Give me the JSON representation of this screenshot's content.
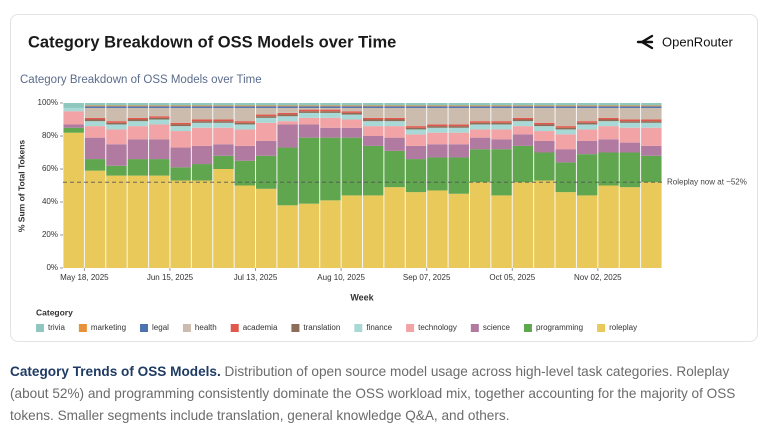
{
  "card_title": "Category Breakdown of OSS Models over Time",
  "brand": "OpenRouter",
  "caption": {
    "title": "Category Trends of OSS Models.",
    "text": "Distribution of open source model usage across high-level task categories. Roleplay (about 52%) and programming consistently dominate the OSS workload mix, together accounting for the majority of OSS tokens. Smaller segments include translation, general knowledge Q&A, and others."
  },
  "chart_data": {
    "type": "stacked_bar",
    "title": "Category Breakdown of OSS Models over Time",
    "x_label": "Week",
    "y_label": "% Sum of Total Tokens",
    "legend_title": "Category",
    "legend": "bottom",
    "categories": [
      "May 18, 2025",
      null,
      null,
      null,
      "Jun 15, 2025",
      null,
      null,
      null,
      "Jul 13, 2025",
      null,
      null,
      null,
      "Aug 10, 2025",
      null,
      null,
      null,
      "Sep 07, 2025",
      null,
      null,
      null,
      "Oct 05, 2025",
      null,
      null,
      null,
      "Nov 02, 2025",
      null,
      null,
      null
    ],
    "ylim": [
      0,
      100
    ],
    "yticks": [
      {
        "value": 0,
        "label": "0%"
      },
      {
        "value": 20,
        "label": "20%"
      },
      {
        "value": 40,
        "label": "40%"
      },
      {
        "value": 60,
        "label": "60%"
      },
      {
        "value": 80,
        "label": "80%"
      },
      {
        "value": 100,
        "label": "100%"
      }
    ],
    "annotation": {
      "text": "Roleplay now at ~52%",
      "value": 52
    },
    "series": [
      {
        "name": "trivia",
        "color": "#8ec7bd",
        "values": [
          3,
          1.5,
          1.5,
          1.5,
          1.5,
          1.5,
          1.5,
          1.5,
          1.5,
          1.5,
          1.5,
          1.5,
          1.5,
          1.5,
          1.5,
          1.5,
          1.5,
          1.5,
          1.5,
          1.5,
          1.5,
          1.5,
          1.5,
          1.5,
          1.5,
          1.5,
          1.5,
          1.5
        ]
      },
      {
        "name": "marketing",
        "color": "#e8913a",
        "values": [
          0,
          0.5,
          0.5,
          0.5,
          0.5,
          0.5,
          0.5,
          0.5,
          0.5,
          0.5,
          0.5,
          0.5,
          0.5,
          0.5,
          0.5,
          0.5,
          0.5,
          0.5,
          0.5,
          0.5,
          0.5,
          0.5,
          0.5,
          0.5,
          0.5,
          0.5,
          0.5,
          0.5
        ]
      },
      {
        "name": "legal",
        "color": "#4c72b0",
        "values": [
          0,
          1,
          1,
          1,
          1,
          1,
          1,
          1,
          1,
          1,
          1,
          1,
          1,
          1,
          1,
          1,
          1,
          1,
          1,
          1,
          1,
          1,
          1,
          1,
          1,
          1,
          1,
          1
        ]
      },
      {
        "name": "health",
        "color": "#cbbcae",
        "values": [
          0,
          6,
          8,
          6,
          5,
          9,
          7,
          7,
          8,
          4,
          3,
          1,
          1,
          2,
          6,
          6,
          11,
          10,
          10,
          8,
          8,
          6,
          9,
          11,
          8,
          6,
          7,
          7
        ]
      },
      {
        "name": "academia",
        "color": "#e05a4b",
        "values": [
          0,
          1,
          1,
          1,
          1,
          1,
          1,
          1,
          1,
          1,
          1,
          1,
          1,
          1,
          1,
          1,
          1,
          1,
          1,
          1,
          1,
          1,
          1,
          1,
          1,
          1,
          1,
          1
        ]
      },
      {
        "name": "translation",
        "color": "#8c6d5a",
        "values": [
          0,
          1,
          1,
          1,
          1,
          1,
          1,
          1,
          1,
          1,
          1,
          1,
          1,
          1,
          1,
          1,
          1,
          1,
          1,
          1,
          1,
          1,
          1,
          1,
          1,
          1,
          1,
          1
        ]
      },
      {
        "name": "finance",
        "color": "#a9d9d6",
        "values": [
          2,
          3,
          3,
          3,
          3,
          3,
          3,
          3,
          3,
          3,
          3,
          3,
          3,
          3,
          3,
          3,
          3,
          3,
          3,
          3,
          3,
          3,
          3,
          3,
          3,
          3,
          3,
          3
        ]
      },
      {
        "name": "technology",
        "color": "#f2a3a5",
        "values": [
          8,
          7,
          9,
          8,
          9,
          10,
          11,
          10,
          10,
          11,
          2,
          4,
          6,
          5,
          6,
          7,
          7,
          7,
          7,
          5,
          6,
          5,
          6,
          9,
          7,
          8,
          9,
          11
        ]
      },
      {
        "name": "science",
        "color": "#b07aa1",
        "values": [
          2,
          13,
          13,
          12,
          12,
          12,
          11,
          7,
          9,
          9,
          14,
          8,
          6,
          6,
          6,
          8,
          8,
          8,
          8,
          7,
          6,
          7,
          7,
          8,
          8,
          8,
          6,
          6
        ]
      },
      {
        "name": "programming",
        "color": "#5fa64f",
        "values": [
          3,
          7,
          6,
          10,
          10,
          8,
          10,
          8,
          15,
          20,
          35,
          40,
          38,
          35,
          30,
          22,
          20,
          20,
          22,
          20,
          28,
          22,
          17,
          18,
          25,
          20,
          21,
          16
        ]
      },
      {
        "name": "roleplay",
        "color": "#e9c95a",
        "values": [
          82,
          59,
          56,
          56,
          56,
          53,
          53,
          60,
          50,
          48,
          38,
          39,
          41,
          44,
          44,
          49,
          46,
          47,
          45,
          52,
          44,
          52,
          53,
          46,
          44,
          50,
          49,
          52
        ]
      }
    ]
  }
}
